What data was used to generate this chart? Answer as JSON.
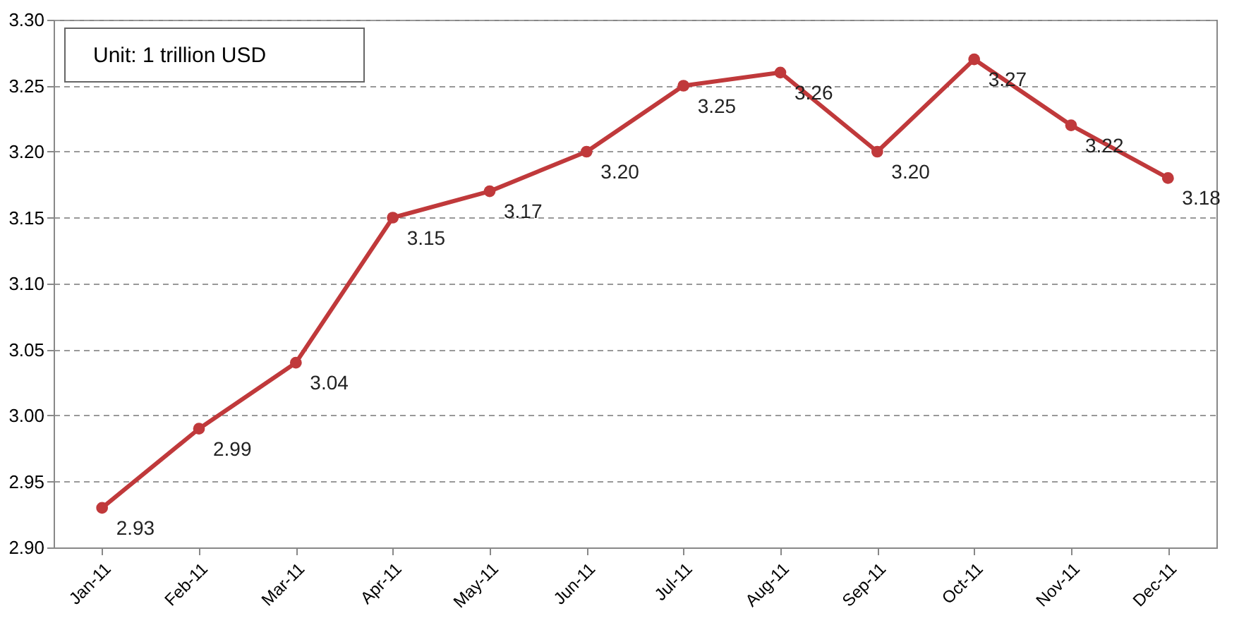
{
  "chart_data": {
    "type": "line",
    "categories": [
      "Jan-11",
      "Feb-11",
      "Mar-11",
      "Apr-11",
      "May-11",
      "Jun-11",
      "Jul-11",
      "Aug-11",
      "Sep-11",
      "Oct-11",
      "Nov-11",
      "Dec-11"
    ],
    "series": [
      {
        "color": "#c0393b",
        "values": [
          2.93,
          2.99,
          3.04,
          3.15,
          3.17,
          3.2,
          3.25,
          3.26,
          3.2,
          3.27,
          3.22,
          3.18
        ]
      }
    ],
    "ylim": [
      2.9,
      3.3
    ],
    "yticks": [
      {
        "value": 2.9,
        "label": "2.90"
      },
      {
        "value": 2.95,
        "label": "2.95"
      },
      {
        "value": 3.0,
        "label": "3.00"
      },
      {
        "value": 3.05,
        "label": "3.05"
      },
      {
        "value": 3.1,
        "label": "3.10"
      },
      {
        "value": 3.15,
        "label": "3.15"
      },
      {
        "value": 3.2,
        "label": "3.20"
      },
      {
        "value": 3.25,
        "label": "3.25"
      },
      {
        "value": 3.3,
        "label": "3.30"
      }
    ],
    "value_labels": [
      "2.93",
      "2.99",
      "3.04",
      "3.15",
      "3.17",
      "3.20",
      "3.25",
      "3.26",
      "3.20",
      "3.27",
      "3.22",
      "3.18"
    ],
    "grid": "y",
    "marker": "circle",
    "line_style": "solid",
    "annotations": [
      "Unit: 1 trillion USD"
    ]
  }
}
